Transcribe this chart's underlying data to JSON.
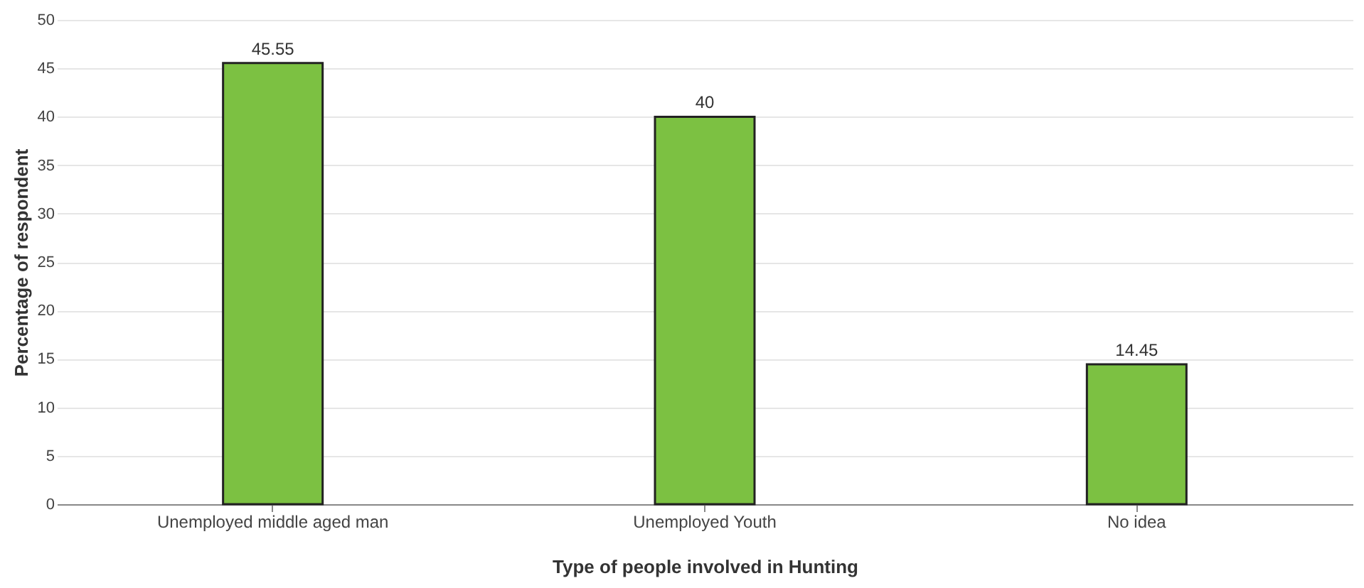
{
  "chart_data": {
    "type": "bar",
    "xlabel": "Type of people involved in Hunting",
    "ylabel": "Percentage of respondent",
    "categories": [
      "Unemployed middle aged man",
      "Unemployed Youth",
      "No idea"
    ],
    "values": [
      45.55,
      40,
      14.45
    ],
    "color": "#7cc142",
    "ylim": [
      0,
      50
    ],
    "yticks": [
      0,
      5,
      10,
      15,
      20,
      25,
      30,
      35,
      40,
      45,
      50
    ],
    "grid": "y",
    "data_labels": true
  }
}
